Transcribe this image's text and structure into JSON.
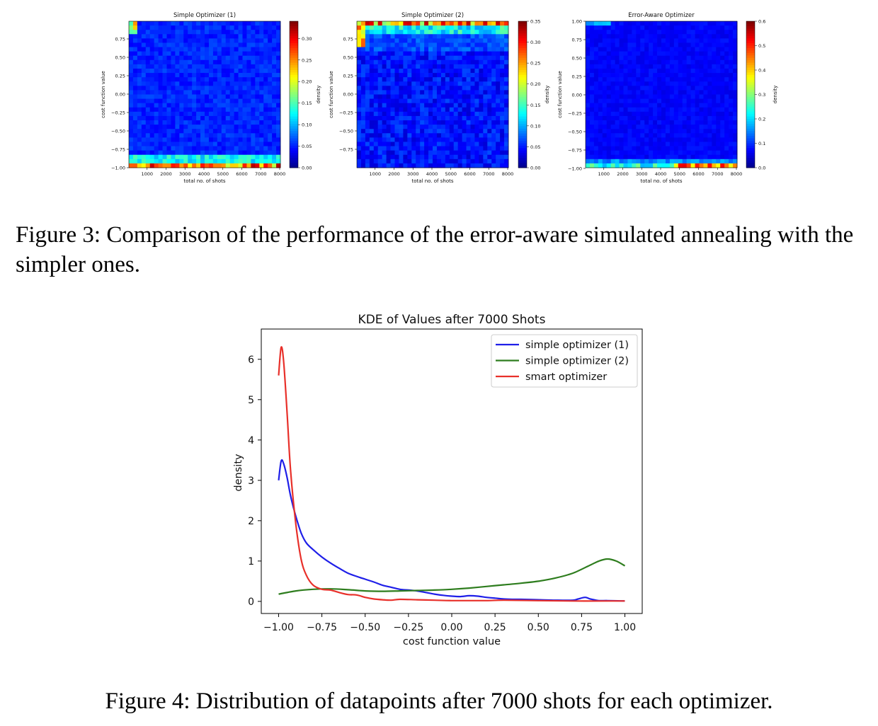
{
  "figure3": {
    "caption": "Figure 3: Comparison of the performance of the error-aware simulated annealing with the simpler ones.",
    "panels": [
      {
        "title": "Simple Optimizer (1)",
        "xlabel": "total no. of shots",
        "ylabel": "cost function value",
        "colorbar_label": "density",
        "x_ticks": [
          "1000",
          "2000",
          "3000",
          "4000",
          "5000",
          "6000",
          "7000",
          "8000"
        ],
        "y_ticks": [
          "0.75",
          "0.50",
          "0.25",
          "0.00",
          "−0.25",
          "−0.50",
          "−0.75",
          "−1.00"
        ],
        "colorbar_ticks": [
          "0.30",
          "0.25",
          "0.20",
          "0.15",
          "0.10",
          "0.05",
          "0.00"
        ],
        "colorbar_max": 0.34
      },
      {
        "title": "Simple Optimizer (2)",
        "xlabel": "total no. of shots",
        "ylabel": "cost function value",
        "colorbar_label": "density",
        "x_ticks": [
          "1000",
          "2000",
          "3000",
          "4000",
          "5000",
          "6000",
          "7000",
          "8000"
        ],
        "y_ticks": [
          "0.75",
          "0.50",
          "0.25",
          "0.00",
          "−0.25",
          "−0.50",
          "−0.75"
        ],
        "colorbar_ticks": [
          "0.35",
          "0.30",
          "0.25",
          "0.20",
          "0.15",
          "0.10",
          "0.05",
          "0.00"
        ],
        "colorbar_max": 0.35
      },
      {
        "title": "Error-Aware Optimizer",
        "xlabel": "total no. of shots",
        "ylabel": "cost function value",
        "colorbar_label": "density",
        "x_ticks": [
          "1000",
          "2000",
          "3000",
          "4000",
          "5000",
          "6000",
          "7000",
          "8000"
        ],
        "y_ticks": [
          "1.00",
          "0.75",
          "0.50",
          "0.25",
          "0.00",
          "−0.25",
          "−0.50",
          "−0.75",
          "−1.00"
        ],
        "colorbar_ticks": [
          "0.6",
          "0.5",
          "0.4",
          "0.3",
          "0.2",
          "0.1",
          "0.0"
        ],
        "colorbar_max": 0.6
      }
    ]
  },
  "figure4": {
    "caption": "Figure 4: Distribution of datapoints after 7000 shots for each optimizer."
  },
  "chart_data": {
    "type": "line",
    "title": "KDE of Values after 7000 Shots",
    "xlabel": "cost function value",
    "ylabel": "density",
    "xlim": [
      -1.1,
      1.1
    ],
    "ylim": [
      -0.3,
      6.75
    ],
    "x_ticks": [
      -1.0,
      -0.75,
      -0.5,
      -0.25,
      0.0,
      0.25,
      0.5,
      0.75,
      1.0
    ],
    "x_tick_labels": [
      "−1.00",
      "−0.75",
      "−0.50",
      "−0.25",
      "0.00",
      "0.25",
      "0.50",
      "0.75",
      "1.00"
    ],
    "y_ticks": [
      0,
      1,
      2,
      3,
      4,
      5,
      6
    ],
    "y_tick_labels": [
      "0",
      "1",
      "2",
      "3",
      "4",
      "5",
      "6"
    ],
    "legend_position": "top-right",
    "series": [
      {
        "name": "simple optimizer (1)",
        "color": "#1f1fe8",
        "x": [
          -1.0,
          -0.985,
          -0.97,
          -0.95,
          -0.93,
          -0.9,
          -0.87,
          -0.84,
          -0.8,
          -0.75,
          -0.7,
          -0.65,
          -0.6,
          -0.55,
          -0.5,
          -0.45,
          -0.4,
          -0.35,
          -0.3,
          -0.25,
          -0.2,
          -0.15,
          -0.1,
          -0.05,
          0.0,
          0.05,
          0.1,
          0.15,
          0.2,
          0.25,
          0.3,
          0.35,
          0.4,
          0.5,
          0.6,
          0.7,
          0.73,
          0.77,
          0.8,
          0.85,
          0.9,
          1.0
        ],
        "y": [
          3.0,
          3.48,
          3.4,
          3.05,
          2.6,
          2.1,
          1.7,
          1.45,
          1.28,
          1.1,
          0.95,
          0.82,
          0.7,
          0.62,
          0.55,
          0.48,
          0.4,
          0.35,
          0.3,
          0.28,
          0.26,
          0.22,
          0.18,
          0.15,
          0.13,
          0.12,
          0.14,
          0.13,
          0.1,
          0.08,
          0.06,
          0.05,
          0.05,
          0.04,
          0.03,
          0.03,
          0.06,
          0.1,
          0.06,
          0.02,
          0.02,
          0.01
        ]
      },
      {
        "name": "simple optimizer (2)",
        "color": "#2e7d1e",
        "x": [
          -1.0,
          -0.9,
          -0.8,
          -0.7,
          -0.6,
          -0.5,
          -0.4,
          -0.3,
          -0.2,
          -0.1,
          0.0,
          0.1,
          0.2,
          0.3,
          0.4,
          0.5,
          0.6,
          0.7,
          0.8,
          0.85,
          0.9,
          0.95,
          1.0
        ],
        "y": [
          0.18,
          0.26,
          0.3,
          0.31,
          0.29,
          0.26,
          0.25,
          0.26,
          0.27,
          0.28,
          0.3,
          0.33,
          0.37,
          0.41,
          0.45,
          0.5,
          0.58,
          0.7,
          0.9,
          1.0,
          1.05,
          1.0,
          0.88
        ]
      },
      {
        "name": "smart optimizer",
        "color": "#e8302a",
        "x": [
          -1.0,
          -0.985,
          -0.97,
          -0.95,
          -0.93,
          -0.9,
          -0.87,
          -0.84,
          -0.8,
          -0.75,
          -0.7,
          -0.65,
          -0.6,
          -0.55,
          -0.5,
          -0.45,
          -0.4,
          -0.35,
          -0.3,
          -0.2,
          -0.1,
          0.0,
          0.1,
          0.2,
          0.3,
          0.5,
          0.7,
          0.9,
          1.0
        ],
        "y": [
          5.6,
          6.3,
          5.9,
          4.6,
          3.2,
          1.9,
          1.05,
          0.65,
          0.4,
          0.3,
          0.28,
          0.22,
          0.17,
          0.16,
          0.1,
          0.06,
          0.04,
          0.03,
          0.05,
          0.04,
          0.03,
          0.02,
          0.02,
          0.02,
          0.03,
          0.02,
          0.01,
          0.01,
          0.01
        ]
      }
    ]
  }
}
